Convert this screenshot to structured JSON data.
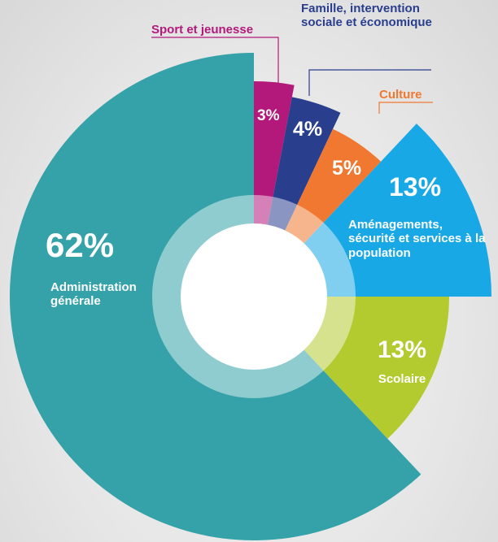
{
  "chart_data": {
    "type": "pie",
    "categories": [
      "Sport et jeunesse",
      "Famille, intervention sociale et économique",
      "Culture",
      "Aménagements, sécurité et services à la population",
      "Scolaire",
      "Administration générale"
    ],
    "values": [
      3,
      4,
      5,
      13,
      13,
      62
    ],
    "value_labels": [
      "3%",
      "4%",
      "5%",
      "13%",
      "13%",
      "62%"
    ],
    "colors": [
      "#b3197b",
      "#2a3e8e",
      "#f07830",
      "#18a8e6",
      "#b4cb30",
      "#34a2a8"
    ]
  }
}
